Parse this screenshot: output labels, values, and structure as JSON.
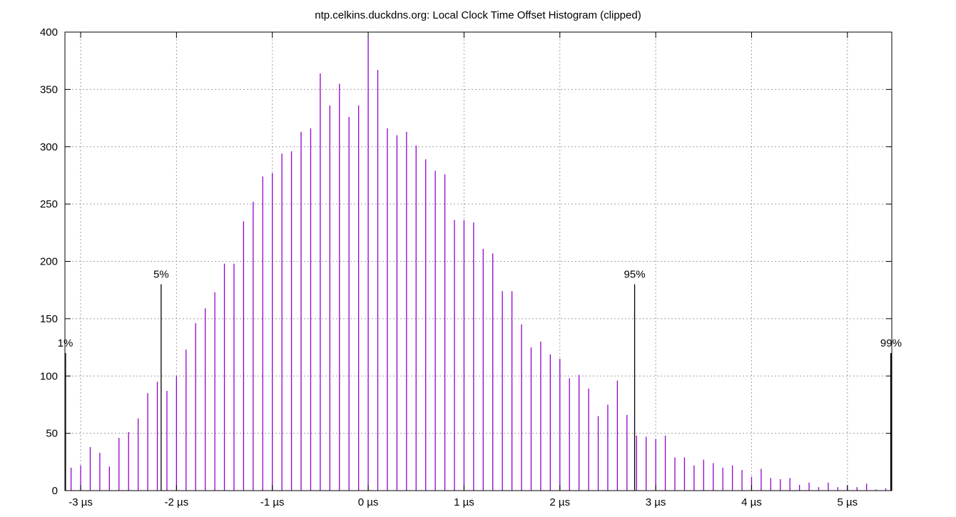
{
  "chart_data": {
    "type": "bar",
    "title": "ntp.celkins.duckdns.org: Local Clock Time Offset Histogram (clipped)",
    "xlabel": "",
    "ylabel": "",
    "xlim": [
      -3.164,
      5.463
    ],
    "ylim": [
      0,
      400
    ],
    "grid": true,
    "x_unit": "µs",
    "x_ticks": [
      "-3 µs",
      "-2 µs",
      "-1 µs",
      "0 µs",
      "1 µs",
      "2 µs",
      "3 µs",
      "4 µs",
      "5 µs"
    ],
    "x_tick_values": [
      -3,
      -2,
      -1,
      0,
      1,
      2,
      3,
      4,
      5
    ],
    "y_ticks": [
      "0",
      "50",
      "100",
      "150",
      "200",
      "250",
      "300",
      "350",
      "400"
    ],
    "y_tick_values": [
      0,
      50,
      100,
      150,
      200,
      250,
      300,
      350,
      400
    ],
    "bar_color": "#9400d3",
    "marker_color": "#000000",
    "x_start": -3.1,
    "x_step": 0.1,
    "values": [
      20,
      22,
      38,
      33,
      21,
      46,
      51,
      63,
      85,
      95,
      87,
      100,
      123,
      146,
      159,
      173,
      198,
      198,
      235,
      252,
      274,
      277,
      294,
      296,
      313,
      316,
      364,
      336,
      355,
      326,
      336,
      395,
      367,
      316,
      310,
      313,
      301,
      289,
      279,
      276,
      236,
      236,
      234,
      211,
      207,
      174,
      174,
      145,
      125,
      130,
      119,
      115,
      98,
      101,
      89,
      65,
      75,
      96,
      66,
      48,
      47,
      45,
      48,
      29,
      29,
      22,
      27,
      24,
      20,
      22,
      18,
      12,
      19,
      11,
      10,
      11,
      5,
      7,
      3,
      7,
      3,
      4,
      3,
      6,
      1,
      2
    ],
    "percentiles": [
      {
        "label": "1%",
        "x": -3.16,
        "height": 120
      },
      {
        "label": "5%",
        "x": -2.16,
        "height": 180
      },
      {
        "label": "95%",
        "x": 2.78,
        "height": 180
      },
      {
        "label": "99%",
        "x": 5.455,
        "height": 120
      }
    ]
  }
}
